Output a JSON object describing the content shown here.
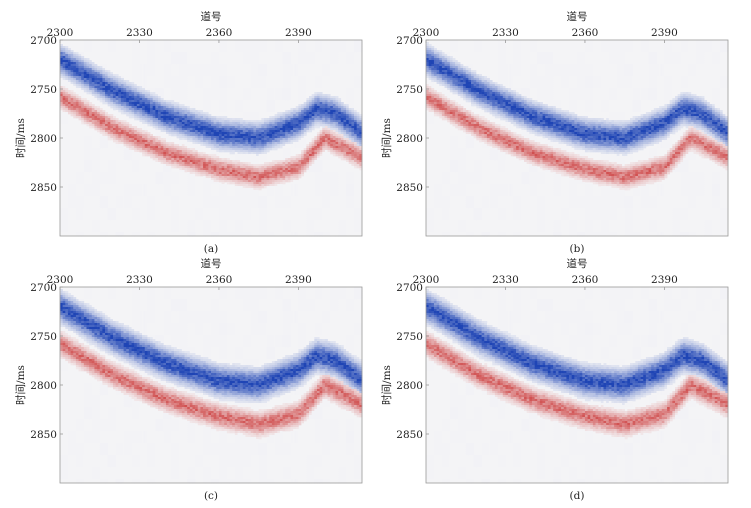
{
  "figure": {
    "background": "#ffffff",
    "colors": {
      "negative": "#1f45b5",
      "positive": "#cc3b3b",
      "neutral": "#f4f4f6",
      "frame": "#999999"
    }
  },
  "chart_data": [
    {
      "type": "heatmap",
      "panel_label": "(a)",
      "xlabel": "道号",
      "ylabel": "时间/ms",
      "x_ticks": [
        "2300",
        "2330",
        "2360",
        "2390"
      ],
      "y_ticks": [
        "2700",
        "2750",
        "2800",
        "2850"
      ],
      "xlim": [
        2300,
        2414
      ],
      "ylim": [
        2700,
        2900
      ],
      "y_reversed": true,
      "colormap": "blue-white-red",
      "events": {
        "blue_center_ms": [
          [
            2300,
            2720
          ],
          [
            2320,
            2752
          ],
          [
            2340,
            2778
          ],
          [
            2360,
            2796
          ],
          [
            2375,
            2800
          ],
          [
            2390,
            2785
          ],
          [
            2397,
            2770
          ],
          [
            2404,
            2775
          ],
          [
            2414,
            2795
          ]
        ],
        "blue_thickness_ms": 26,
        "red_center_ms": [
          [
            2300,
            2758
          ],
          [
            2320,
            2790
          ],
          [
            2340,
            2815
          ],
          [
            2360,
            2832
          ],
          [
            2375,
            2840
          ],
          [
            2390,
            2830
          ],
          [
            2400,
            2800
          ],
          [
            2414,
            2820
          ]
        ],
        "red_thickness_ms": 20
      }
    },
    {
      "type": "heatmap",
      "panel_label": "(b)",
      "xlabel": "道号",
      "ylabel": "时间/ms",
      "x_ticks": [
        "2300",
        "2330",
        "2360",
        "2390"
      ],
      "y_ticks": [
        "2700",
        "2750",
        "2800",
        "2850"
      ],
      "xlim": [
        2300,
        2414
      ],
      "ylim": [
        2700,
        2900
      ],
      "y_reversed": true,
      "colormap": "blue-white-red",
      "events": {
        "blue_center_ms": [
          [
            2300,
            2720
          ],
          [
            2320,
            2752
          ],
          [
            2340,
            2778
          ],
          [
            2360,
            2796
          ],
          [
            2375,
            2800
          ],
          [
            2390,
            2785
          ],
          [
            2397,
            2770
          ],
          [
            2404,
            2775
          ],
          [
            2414,
            2795
          ]
        ],
        "blue_thickness_ms": 26,
        "red_center_ms": [
          [
            2300,
            2758
          ],
          [
            2320,
            2790
          ],
          [
            2340,
            2815
          ],
          [
            2360,
            2832
          ],
          [
            2375,
            2840
          ],
          [
            2390,
            2830
          ],
          [
            2400,
            2800
          ],
          [
            2414,
            2820
          ]
        ],
        "red_thickness_ms": 20
      }
    },
    {
      "type": "heatmap",
      "panel_label": "(c)",
      "xlabel": "道号",
      "ylabel": "时间/ms",
      "x_ticks": [
        "2300",
        "2330",
        "2360",
        "2390"
      ],
      "y_ticks": [
        "2700",
        "2750",
        "2800",
        "2850"
      ],
      "xlim": [
        2300,
        2414
      ],
      "ylim": [
        2700,
        2900
      ],
      "y_reversed": true,
      "colormap": "blue-white-red",
      "events": {
        "blue_center_ms": [
          [
            2300,
            2720
          ],
          [
            2320,
            2752
          ],
          [
            2340,
            2778
          ],
          [
            2360,
            2796
          ],
          [
            2375,
            2800
          ],
          [
            2390,
            2785
          ],
          [
            2397,
            2770
          ],
          [
            2404,
            2775
          ],
          [
            2414,
            2795
          ]
        ],
        "blue_thickness_ms": 28,
        "red_center_ms": [
          [
            2300,
            2758
          ],
          [
            2320,
            2790
          ],
          [
            2340,
            2815
          ],
          [
            2360,
            2832
          ],
          [
            2375,
            2840
          ],
          [
            2390,
            2830
          ],
          [
            2400,
            2800
          ],
          [
            2414,
            2820
          ]
        ],
        "red_thickness_ms": 22
      }
    },
    {
      "type": "heatmap",
      "panel_label": "(d)",
      "xlabel": "道号",
      "ylabel": "时间/ms",
      "x_ticks": [
        "2300",
        "2330",
        "2360",
        "2390"
      ],
      "y_ticks": [
        "2700",
        "2750",
        "2800",
        "2850"
      ],
      "xlim": [
        2300,
        2414
      ],
      "ylim": [
        2700,
        2900
      ],
      "y_reversed": true,
      "colormap": "blue-white-red",
      "events": {
        "blue_center_ms": [
          [
            2300,
            2720
          ],
          [
            2320,
            2752
          ],
          [
            2340,
            2778
          ],
          [
            2360,
            2796
          ],
          [
            2375,
            2800
          ],
          [
            2390,
            2785
          ],
          [
            2397,
            2770
          ],
          [
            2404,
            2775
          ],
          [
            2414,
            2795
          ]
        ],
        "blue_thickness_ms": 28,
        "red_center_ms": [
          [
            2300,
            2758
          ],
          [
            2320,
            2790
          ],
          [
            2340,
            2815
          ],
          [
            2360,
            2832
          ],
          [
            2375,
            2840
          ],
          [
            2390,
            2830
          ],
          [
            2400,
            2800
          ],
          [
            2414,
            2820
          ]
        ],
        "red_thickness_ms": 22
      }
    }
  ]
}
